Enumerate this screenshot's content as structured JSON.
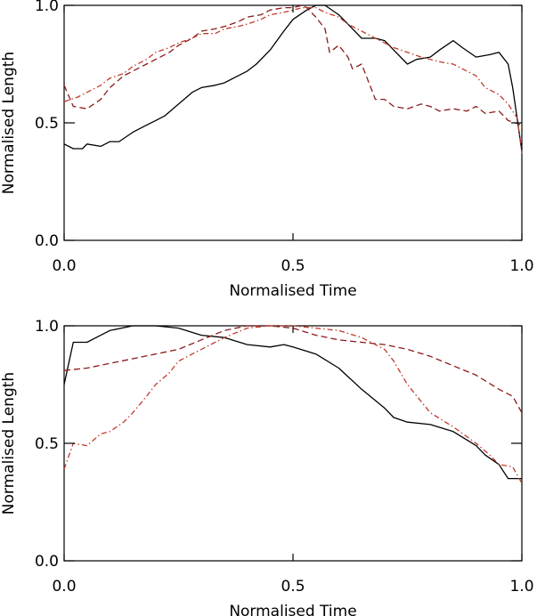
{
  "chart_data": [
    {
      "type": "line",
      "title": "",
      "xlabel": "Normalised Time",
      "ylabel": "Normalised Length",
      "xlim": [
        0,
        1
      ],
      "ylim": [
        0,
        1
      ],
      "grid": false,
      "xticks": [
        {
          "value": 0,
          "label": "0.0"
        },
        {
          "value": 0.5,
          "label": "0.5"
        },
        {
          "value": 1,
          "label": "1.0"
        }
      ],
      "yticks": [
        {
          "value": 0,
          "label": "0.0"
        },
        {
          "value": 0.5,
          "label": "0.5"
        },
        {
          "value": 1,
          "label": "1.0"
        }
      ],
      "series": [
        {
          "name": "solid",
          "color": "#000000",
          "style": "solid",
          "x": [
            0,
            0.02,
            0.04,
            0.05,
            0.08,
            0.1,
            0.12,
            0.15,
            0.18,
            0.2,
            0.22,
            0.25,
            0.28,
            0.3,
            0.33,
            0.35,
            0.38,
            0.4,
            0.42,
            0.45,
            0.48,
            0.5,
            0.53,
            0.55,
            0.57,
            0.6,
            0.62,
            0.65,
            0.68,
            0.7,
            0.72,
            0.75,
            0.77,
            0.8,
            0.82,
            0.85,
            0.87,
            0.9,
            0.93,
            0.95,
            0.97,
            0.98,
            1.0
          ],
          "y": [
            0.41,
            0.39,
            0.39,
            0.41,
            0.4,
            0.42,
            0.42,
            0.46,
            0.49,
            0.51,
            0.53,
            0.58,
            0.63,
            0.65,
            0.66,
            0.67,
            0.7,
            0.72,
            0.75,
            0.81,
            0.89,
            0.94,
            0.98,
            1.0,
            1.0,
            0.96,
            0.92,
            0.86,
            0.86,
            0.85,
            0.81,
            0.75,
            0.77,
            0.78,
            0.81,
            0.85,
            0.82,
            0.78,
            0.79,
            0.8,
            0.75,
            0.65,
            0.38
          ]
        },
        {
          "name": "dashed",
          "color": "#8b1a1a",
          "style": "dashed",
          "x": [
            0,
            0.02,
            0.05,
            0.08,
            0.1,
            0.13,
            0.15,
            0.18,
            0.2,
            0.23,
            0.25,
            0.28,
            0.3,
            0.33,
            0.35,
            0.38,
            0.4,
            0.43,
            0.45,
            0.48,
            0.5,
            0.52,
            0.53,
            0.55,
            0.57,
            0.58,
            0.6,
            0.62,
            0.63,
            0.65,
            0.68,
            0.7,
            0.72,
            0.75,
            0.78,
            0.8,
            0.82,
            0.85,
            0.88,
            0.9,
            0.92,
            0.95,
            0.97,
            1.0
          ],
          "y": [
            0.66,
            0.57,
            0.56,
            0.6,
            0.65,
            0.7,
            0.72,
            0.75,
            0.77,
            0.8,
            0.83,
            0.86,
            0.89,
            0.9,
            0.91,
            0.93,
            0.95,
            0.96,
            0.98,
            0.99,
            0.99,
            1.0,
            0.99,
            0.95,
            0.9,
            0.8,
            0.83,
            0.78,
            0.73,
            0.75,
            0.6,
            0.6,
            0.57,
            0.56,
            0.58,
            0.57,
            0.55,
            0.56,
            0.55,
            0.57,
            0.54,
            0.55,
            0.51,
            0.49
          ]
        },
        {
          "name": "dash-dot",
          "color": "#c0392b",
          "style": "dashdot",
          "x": [
            0,
            0.03,
            0.05,
            0.08,
            0.1,
            0.13,
            0.15,
            0.18,
            0.2,
            0.23,
            0.25,
            0.28,
            0.3,
            0.33,
            0.35,
            0.38,
            0.4,
            0.43,
            0.45,
            0.48,
            0.5,
            0.52,
            0.55,
            0.57,
            0.6,
            0.62,
            0.65,
            0.68,
            0.7,
            0.72,
            0.75,
            0.78,
            0.8,
            0.82,
            0.85,
            0.88,
            0.9,
            0.92,
            0.95,
            0.97,
            0.99,
            1.0
          ],
          "y": [
            0.59,
            0.61,
            0.63,
            0.66,
            0.69,
            0.71,
            0.74,
            0.77,
            0.8,
            0.82,
            0.84,
            0.86,
            0.88,
            0.88,
            0.9,
            0.91,
            0.92,
            0.94,
            0.96,
            0.97,
            0.98,
            0.99,
            0.99,
            0.97,
            0.95,
            0.92,
            0.89,
            0.86,
            0.84,
            0.82,
            0.8,
            0.78,
            0.77,
            0.76,
            0.75,
            0.72,
            0.7,
            0.65,
            0.62,
            0.58,
            0.52,
            0.37
          ]
        }
      ]
    },
    {
      "type": "line",
      "title": "",
      "xlabel": "Normalised Time",
      "ylabel": "Normalised Length",
      "xlim": [
        0,
        1
      ],
      "ylim": [
        0,
        1
      ],
      "grid": false,
      "xticks": [
        {
          "value": 0,
          "label": "0.0"
        },
        {
          "value": 0.5,
          "label": "0.5"
        },
        {
          "value": 1,
          "label": "1.0"
        }
      ],
      "yticks": [
        {
          "value": 0,
          "label": "0.0"
        },
        {
          "value": 0.5,
          "label": "0.5"
        },
        {
          "value": 1,
          "label": "1.0"
        }
      ],
      "series": [
        {
          "name": "solid",
          "color": "#000000",
          "style": "solid",
          "x": [
            0,
            0.02,
            0.05,
            0.08,
            0.1,
            0.15,
            0.2,
            0.25,
            0.3,
            0.35,
            0.4,
            0.45,
            0.48,
            0.5,
            0.55,
            0.6,
            0.65,
            0.7,
            0.72,
            0.75,
            0.8,
            0.85,
            0.9,
            0.92,
            0.95,
            0.97,
            1.0
          ],
          "y": [
            0.75,
            0.93,
            0.93,
            0.96,
            0.98,
            1.0,
            1.0,
            0.99,
            0.96,
            0.95,
            0.92,
            0.91,
            0.92,
            0.91,
            0.88,
            0.82,
            0.73,
            0.65,
            0.61,
            0.59,
            0.58,
            0.55,
            0.49,
            0.45,
            0.41,
            0.35,
            0.35
          ]
        },
        {
          "name": "dashed",
          "color": "#8b1a1a",
          "style": "dashed",
          "x": [
            0,
            0.05,
            0.1,
            0.15,
            0.2,
            0.25,
            0.3,
            0.35,
            0.4,
            0.45,
            0.5,
            0.55,
            0.6,
            0.65,
            0.7,
            0.75,
            0.8,
            0.85,
            0.9,
            0.95,
            0.98,
            1.0
          ],
          "y": [
            0.81,
            0.82,
            0.84,
            0.86,
            0.88,
            0.9,
            0.94,
            0.98,
            1.0,
            1.0,
            0.99,
            0.96,
            0.94,
            0.93,
            0.92,
            0.9,
            0.87,
            0.83,
            0.79,
            0.73,
            0.7,
            0.63
          ]
        },
        {
          "name": "dash-dot",
          "color": "#c0392b",
          "style": "dashdot",
          "x": [
            0,
            0.02,
            0.05,
            0.08,
            0.1,
            0.13,
            0.15,
            0.18,
            0.2,
            0.23,
            0.25,
            0.3,
            0.35,
            0.4,
            0.45,
            0.5,
            0.55,
            0.6,
            0.65,
            0.7,
            0.72,
            0.75,
            0.8,
            0.85,
            0.9,
            0.93,
            0.95,
            0.98,
            1.0
          ],
          "y": [
            0.39,
            0.5,
            0.49,
            0.54,
            0.55,
            0.59,
            0.63,
            0.7,
            0.75,
            0.8,
            0.85,
            0.9,
            0.95,
            0.99,
            1.0,
            1.0,
            0.99,
            0.98,
            0.95,
            0.9,
            0.85,
            0.75,
            0.63,
            0.57,
            0.5,
            0.45,
            0.41,
            0.4,
            0.33
          ]
        }
      ]
    }
  ]
}
